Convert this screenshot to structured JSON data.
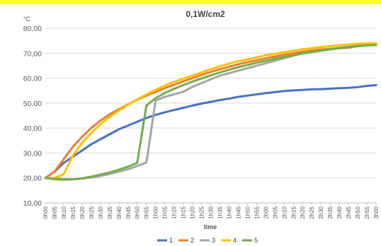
{
  "banner_color": "#ffff33",
  "chart_data": {
    "type": "line",
    "title": "0,1W/cm2",
    "ylabel": "°C",
    "xlabel": "time",
    "ylim": [
      10,
      80
    ],
    "yticks": [
      "10,00",
      "20,00",
      "30,00",
      "40,00",
      "50,00",
      "60,00",
      "70,00",
      "80,00"
    ],
    "grid": true,
    "legend_position": "bottom",
    "categories": [
      "0h00",
      "0h05",
      "0h10",
      "0h15",
      "0h20",
      "0h25",
      "0h30",
      "0h35",
      "0h40",
      "0h45",
      "0h50",
      "0h55",
      "1h00",
      "1h05",
      "1h10",
      "1h15",
      "1h20",
      "1h25",
      "1h30",
      "1h35",
      "1h40",
      "1h45",
      "1h50",
      "1h55",
      "2h00",
      "2h05",
      "2h10",
      "2h15",
      "2h20",
      "2h25",
      "2h30",
      "2h35",
      "2h40",
      "2h45",
      "2h50",
      "2h55",
      "3h00"
    ],
    "series": [
      {
        "name": "1",
        "color": "#4472c4",
        "values": [
          20,
          22.5,
          26,
          28.5,
          31,
          33.5,
          35.5,
          37.5,
          39.5,
          41,
          42.5,
          44,
          45.3,
          46.3,
          47.2,
          48.1,
          49,
          49.8,
          50.5,
          51.2,
          51.8,
          52.5,
          53,
          53.5,
          54,
          54.4,
          54.8,
          55.1,
          55.3,
          55.5,
          55.6,
          55.8,
          56,
          56.1,
          56.4,
          56.9,
          57.2
        ]
      },
      {
        "name": "2",
        "color": "#ed7d31",
        "values": [
          20,
          22.5,
          27.5,
          32.5,
          36.5,
          40,
          43,
          45.5,
          47.5,
          49.5,
          51.3,
          53,
          54.5,
          56,
          57.3,
          58.7,
          60,
          61.3,
          62.5,
          63.6,
          64.6,
          65.6,
          66.4,
          67.2,
          68,
          68.7,
          69.4,
          70,
          70.6,
          71.1,
          71.5,
          71.8,
          72,
          72.2,
          72.8,
          73.2,
          73.5
        ]
      },
      {
        "name": "3",
        "color": "#a5a5a5",
        "values": [
          20,
          19.8,
          19.6,
          19.5,
          19.7,
          20.2,
          20.8,
          21.6,
          22.5,
          23.5,
          24.8,
          26.2,
          51,
          52.5,
          53.5,
          54.5,
          56.5,
          58,
          59.5,
          61,
          62,
          63,
          64,
          65,
          66,
          67,
          68,
          69,
          70,
          70.5,
          71,
          71.8,
          72.2,
          72.7,
          73,
          73.4,
          73.6
        ]
      },
      {
        "name": "4",
        "color": "#ffc000",
        "values": [
          20,
          20,
          21.5,
          29,
          34,
          38,
          41.5,
          44.5,
          47,
          49.3,
          51.5,
          53.5,
          55.3,
          57,
          58.5,
          59.8,
          61,
          62.3,
          63.6,
          64.8,
          65.8,
          66.8,
          67.5,
          68.3,
          69.2,
          69.8,
          70.4,
          71,
          71.6,
          72,
          72.5,
          72.8,
          73.2,
          73.5,
          73.8,
          74,
          74
        ]
      },
      {
        "name": "5",
        "color": "#70ad47",
        "values": [
          20,
          19.5,
          19.3,
          19.4,
          19.8,
          20.5,
          21.3,
          22.2,
          23.3,
          24.5,
          26,
          49,
          52,
          54,
          55.7,
          57.2,
          58.6,
          59.9,
          61.1,
          62.3,
          63.4,
          64.4,
          65.3,
          66.2,
          67,
          67.8,
          68.5,
          69.2,
          69.9,
          70.5,
          71,
          71.5,
          72,
          72.4,
          72.8,
          73.1,
          73.3
        ]
      }
    ]
  }
}
